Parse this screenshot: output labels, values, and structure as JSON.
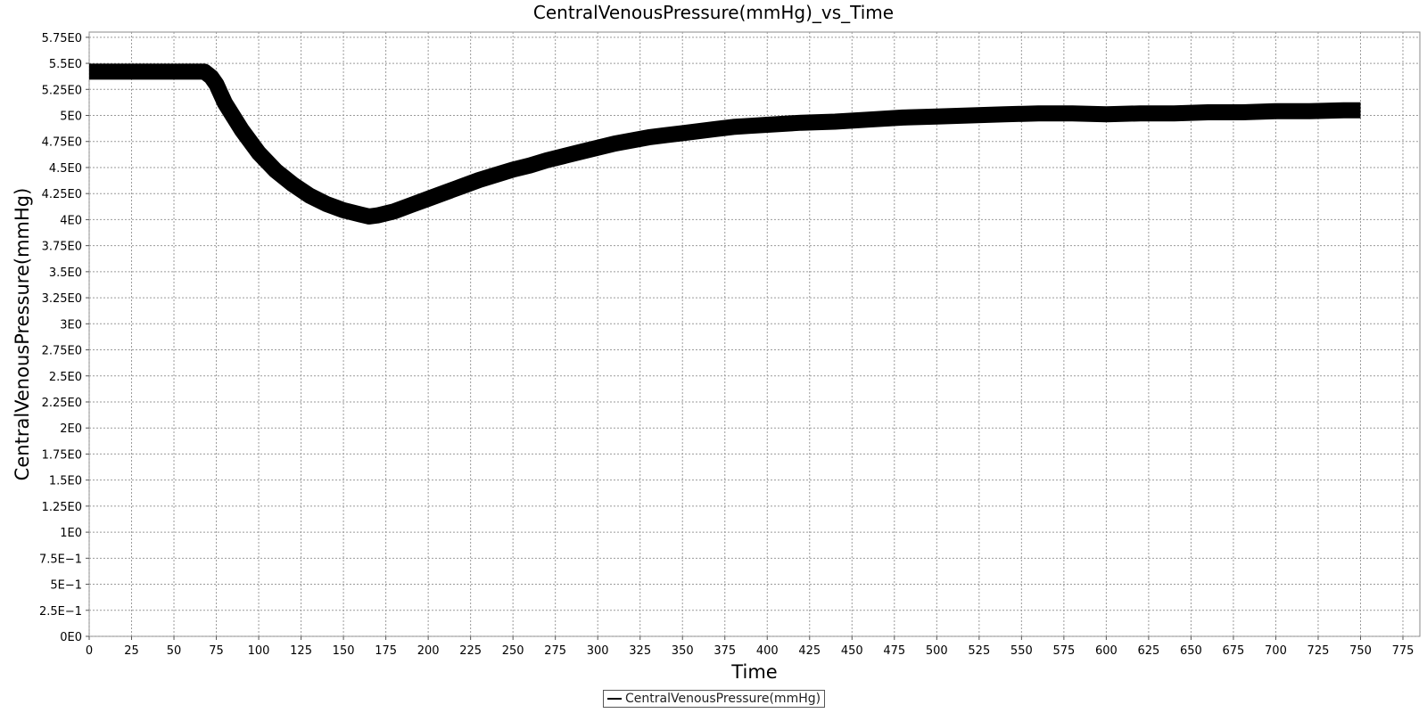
{
  "chart_data": {
    "type": "line",
    "title": "CentralVenousPressure(mmHg)_vs_Time",
    "xlabel": "Time",
    "ylabel": "CentralVenousPressure(mmHg)",
    "xlim": [
      0,
      785
    ],
    "ylim": [
      0,
      5.8
    ],
    "x_ticks": [
      0,
      25,
      50,
      75,
      100,
      125,
      150,
      175,
      200,
      225,
      250,
      275,
      300,
      325,
      350,
      375,
      400,
      425,
      450,
      475,
      500,
      525,
      550,
      575,
      600,
      625,
      650,
      675,
      700,
      725,
      750,
      775
    ],
    "y_ticks": [
      0,
      0.25,
      0.5,
      0.75,
      1,
      1.25,
      1.5,
      1.75,
      2,
      2.25,
      2.5,
      2.75,
      3,
      3.25,
      3.5,
      3.75,
      4,
      4.25,
      4.5,
      4.75,
      5,
      5.25,
      5.5,
      5.75
    ],
    "y_tick_labels": [
      "0E0",
      "2.5E−1",
      "5E−1",
      "7.5E−1",
      "1E0",
      "1.25E0",
      "1.5E0",
      "1.75E0",
      "2E0",
      "2.25E0",
      "2.5E0",
      "2.75E0",
      "3E0",
      "3.25E0",
      "3.5E0",
      "3.75E0",
      "4E0",
      "4.25E0",
      "4.5E0",
      "4.75E0",
      "5E0",
      "5.25E0",
      "5.5E0",
      "5.75E0"
    ],
    "grid": true,
    "legend_position": "bottom-center",
    "series": [
      {
        "name": "CentralVenousPressure(mmHg)",
        "color": "#000000",
        "x": [
          0,
          10,
          20,
          30,
          40,
          50,
          60,
          68,
          72,
          75,
          80,
          90,
          100,
          110,
          120,
          130,
          140,
          150,
          160,
          165,
          170,
          180,
          190,
          200,
          210,
          220,
          230,
          240,
          250,
          260,
          270,
          280,
          290,
          300,
          310,
          320,
          330,
          340,
          350,
          360,
          370,
          380,
          390,
          400,
          420,
          440,
          460,
          480,
          500,
          520,
          540,
          560,
          580,
          600,
          620,
          640,
          660,
          680,
          700,
          720,
          740,
          750
        ],
        "y": [
          5.42,
          5.42,
          5.42,
          5.42,
          5.42,
          5.42,
          5.42,
          5.42,
          5.37,
          5.3,
          5.12,
          4.86,
          4.64,
          4.47,
          4.34,
          4.23,
          4.15,
          4.09,
          4.05,
          4.03,
          4.04,
          4.08,
          4.14,
          4.2,
          4.26,
          4.32,
          4.38,
          4.43,
          4.48,
          4.52,
          4.57,
          4.61,
          4.65,
          4.69,
          4.73,
          4.76,
          4.79,
          4.81,
          4.83,
          4.85,
          4.87,
          4.89,
          4.9,
          4.91,
          4.93,
          4.94,
          4.96,
          4.98,
          4.99,
          5.0,
          5.01,
          5.02,
          5.02,
          5.01,
          5.02,
          5.02,
          5.03,
          5.03,
          5.04,
          5.04,
          5.05,
          5.05
        ]
      }
    ]
  },
  "legend": {
    "label": "CentralVenousPressure(mmHg)"
  }
}
